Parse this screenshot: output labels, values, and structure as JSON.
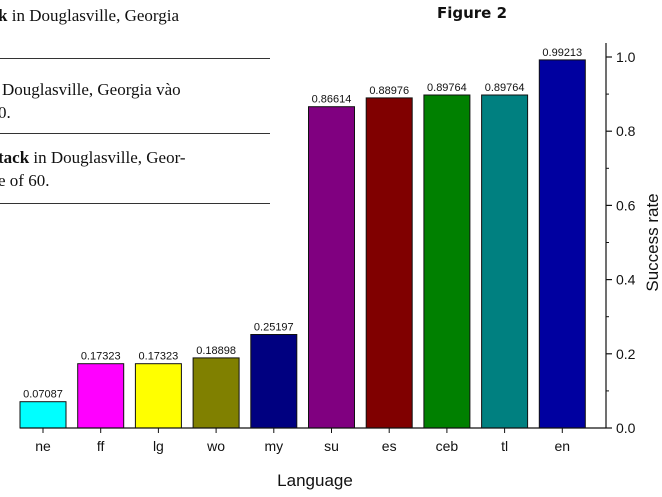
{
  "document": {
    "lines": [
      {
        "bold": "k",
        "rest": " in Douglasville, Georgia"
      },
      {
        "bold": "",
        "rest": "Douglasville, Georgia vào"
      },
      {
        "bold": "",
        "rest": "0."
      },
      {
        "bold": "tack",
        "rest": " in Douglasville, Geor-"
      },
      {
        "bold": "",
        "rest": "e of 60."
      }
    ]
  },
  "figure_title": "Figure 2",
  "chart_data": {
    "type": "bar",
    "categories": [
      "ne",
      "ff",
      "lg",
      "wo",
      "my",
      "su",
      "es",
      "ceb",
      "tl",
      "en"
    ],
    "values": [
      0.07087,
      0.17323,
      0.17323,
      0.18898,
      0.25197,
      0.86614,
      0.88976,
      0.89764,
      0.89764,
      0.99213
    ],
    "value_labels": [
      "0.07087",
      "0.17323",
      "0.17323",
      "0.18898",
      "0.25197",
      "0.86614",
      "0.88976",
      "0.89764",
      "0.89764",
      "0.99213"
    ],
    "colors": [
      "#00ffff",
      "#ff00ff",
      "#ffff00",
      "#808000",
      "#000080",
      "#800080",
      "#800000",
      "#008000",
      "#008080",
      "#0000a0"
    ],
    "xlabel": "Language",
    "ylabel": "Success rate",
    "ylim": [
      0,
      1.0
    ],
    "yticks": [
      "0.0",
      "0.2",
      "0.4",
      "0.6",
      "0.8",
      "1.0"
    ],
    "y_axis_side": "right"
  }
}
